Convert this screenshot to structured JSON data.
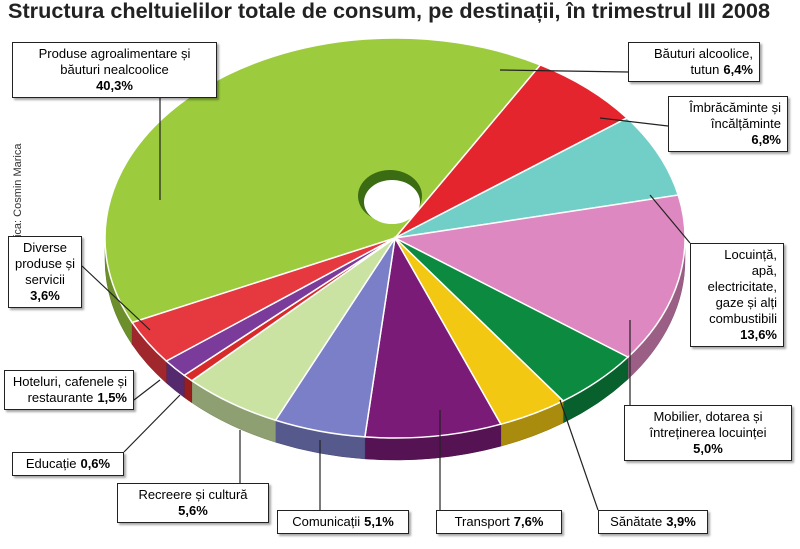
{
  "chart_data": {
    "type": "pie3d",
    "title": "Structura cheltuielilor totale de consum, pe destinații, în trimestrul III 2008",
    "credit": "grafica: Cosmin Marica",
    "categories": [
      "Produse agroalimentare și băuturi nealcoolice",
      "Băuturi alcoolice, tutun",
      "Îmbrăcăminte și încălțăminte",
      "Locuință, apă, electricitate, gaze și alți combustibili",
      "Mobilier, dotarea și întreținerea locuinței",
      "Sănătate",
      "Transport",
      "Comunicații",
      "Recreere și cultură",
      "Educație",
      "Hoteluri, cafenele și restaurante",
      "Diverse produse și servicii"
    ],
    "values": [
      40.3,
      6.4,
      6.8,
      13.6,
      5.0,
      3.9,
      7.6,
      5.1,
      5.6,
      0.6,
      1.5,
      3.6
    ],
    "value_labels": [
      "40,3%",
      "6,4%",
      "6,8%",
      "13,6%",
      "5,0%",
      "3,9%",
      "7,6%",
      "5,1%",
      "5,6%",
      "0,6%",
      "1,5%",
      "3,6%"
    ],
    "colors": [
      "#9ccc3e",
      "#e4252d",
      "#72cfc8",
      "#dd88c0",
      "#0b8a40",
      "#f2c812",
      "#7b1b78",
      "#7b7fc7",
      "#cbe3a2",
      "#d92a2a",
      "#7a3b9b",
      "#e5383f"
    ]
  }
}
